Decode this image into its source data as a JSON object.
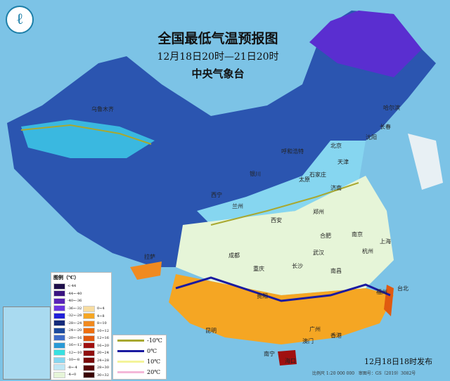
{
  "header": {
    "title": "全国最低气温预报图",
    "period": "12月18日20时—21日20时",
    "issuer": "中央气象台"
  },
  "legend": {
    "title": "图例（℃）",
    "left": [
      {
        "label": "<-44",
        "color": "#1e0f4a"
      },
      {
        "label": "-44~-40",
        "color": "#3a1480"
      },
      {
        "label": "-40~-36",
        "color": "#5a23b8"
      },
      {
        "label": "-36~-32",
        "color": "#6a35e0"
      },
      {
        "label": "-32~-28",
        "color": "#2020d8"
      },
      {
        "label": "-28~-24",
        "color": "#142a7a"
      },
      {
        "label": "-24~-20",
        "color": "#1c4a9e"
      },
      {
        "label": "-20~-16",
        "color": "#3f6cc8"
      },
      {
        "label": "-16~-12",
        "color": "#2a9ad6"
      },
      {
        "label": "-12~-10",
        "color": "#38e0e0"
      },
      {
        "label": "-10~-8",
        "color": "#86d6f0"
      },
      {
        "label": "-8~-4",
        "color": "#bfe6f4"
      },
      {
        "label": "-4~0",
        "color": "#e6f5d8"
      }
    ],
    "right": [
      {
        "label": "0~4",
        "color": "#f7dca0"
      },
      {
        "label": "4~8",
        "color": "#f5a623"
      },
      {
        "label": "8~10",
        "color": "#f08a20"
      },
      {
        "label": "10~12",
        "color": "#ee7010"
      },
      {
        "label": "12~16",
        "color": "#e05a10"
      },
      {
        "label": "16~20",
        "color": "#a01010"
      },
      {
        "label": "20~24",
        "color": "#901010"
      },
      {
        "label": "24~28",
        "color": "#7a0a0a"
      },
      {
        "label": "28~30",
        "color": "#5a0505"
      },
      {
        "label": "30~32",
        "color": "#3a0202"
      }
    ]
  },
  "isolines": [
    {
      "label": "-10℃",
      "color": "#a8a830"
    },
    {
      "label": "0℃",
      "color": "#1a1aa0"
    },
    {
      "label": "10℃",
      "color": "#f4f49a"
    },
    {
      "label": "20℃",
      "color": "#f4b8d8"
    }
  ],
  "cities": [
    "乌鲁木齐",
    "哈尔滨",
    "长春",
    "沈阳",
    "呼和浩特",
    "北京",
    "天津",
    "石家庄",
    "太原",
    "银川",
    "济南",
    "西宁",
    "兰州",
    "郑州",
    "西安",
    "合肥",
    "南京",
    "上海",
    "拉萨",
    "成都",
    "重庆",
    "武汉",
    "杭州",
    "长沙",
    "南昌",
    "福州",
    "台北",
    "贵阳",
    "昆明",
    "南宁",
    "广州",
    "香港",
    "澳门",
    "海口"
  ],
  "footer": {
    "published": "12月18日18时发布",
    "scale": "比例尺 1:20 000 000",
    "map_no": "审图号：GS（2019）3082号"
  }
}
